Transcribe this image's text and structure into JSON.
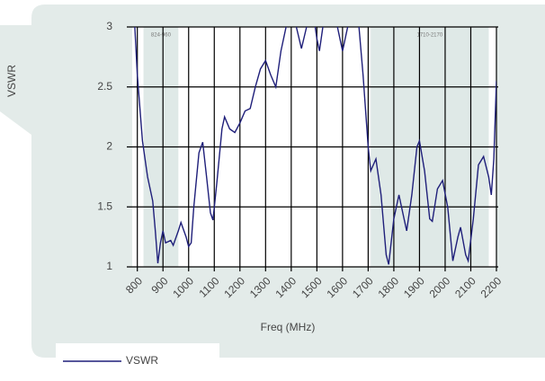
{
  "chart_data": {
    "type": "line",
    "y_label": "VSWR",
    "x_label": "Freq (MHz)",
    "xlim": [
      780,
      2200
    ],
    "xticks": [
      800,
      900,
      1000,
      1100,
      1200,
      1300,
      1400,
      1500,
      1600,
      1700,
      1800,
      1900,
      2000,
      2100,
      2200
    ],
    "ylim": [
      1,
      3
    ],
    "yticks": [
      1,
      1.5,
      2,
      2.5,
      3
    ],
    "grid": true,
    "bands": [
      {
        "label": "824-960",
        "range": [
          824,
          960
        ]
      },
      {
        "label": "1710-2170",
        "range": [
          1710,
          2170
        ]
      }
    ],
    "band_color": "#dfe9e7",
    "legend": "bottom-left",
    "x": [
      790,
      800,
      820,
      840,
      860,
      870,
      880,
      890,
      900,
      910,
      930,
      940,
      960,
      970,
      990,
      1000,
      1010,
      1020,
      1040,
      1055,
      1070,
      1085,
      1095,
      1110,
      1130,
      1140,
      1160,
      1180,
      1200,
      1220,
      1240,
      1260,
      1280,
      1300,
      1320,
      1340,
      1360,
      1380,
      1400,
      1420,
      1440,
      1460,
      1480,
      1500,
      1510,
      1530,
      1560,
      1580,
      1600,
      1620,
      1640,
      1660,
      1680,
      1700,
      1710,
      1730,
      1750,
      1770,
      1780,
      1800,
      1820,
      1840,
      1850,
      1870,
      1890,
      1900,
      1920,
      1940,
      1950,
      1970,
      1990,
      2010,
      2030,
      2050,
      2060,
      2080,
      2090,
      2110,
      2130,
      2150,
      2170,
      2180,
      2190,
      2200
    ],
    "series": [
      {
        "name": "VSWR",
        "color": "#1f1f7a",
        "values": [
          3,
          2.6,
          2.05,
          1.75,
          1.55,
          1.3,
          1.03,
          1.2,
          1.3,
          1.2,
          1.22,
          1.18,
          1.3,
          1.37,
          1.25,
          1.17,
          1.2,
          1.5,
          1.95,
          2.04,
          1.75,
          1.45,
          1.39,
          1.7,
          2.15,
          2.25,
          2.15,
          2.12,
          2.2,
          2.3,
          2.32,
          2.5,
          2.65,
          2.72,
          2.6,
          2.5,
          2.8,
          3.0,
          3.2,
          3.0,
          2.82,
          3.0,
          3.2,
          2.9,
          2.8,
          3.1,
          3.2,
          3.0,
          2.8,
          3.0,
          3.2,
          3.1,
          2.6,
          2.0,
          1.8,
          1.9,
          1.6,
          1.1,
          1.02,
          1.4,
          1.6,
          1.4,
          1.3,
          1.6,
          2.0,
          2.05,
          1.8,
          1.4,
          1.38,
          1.65,
          1.72,
          1.5,
          1.05,
          1.25,
          1.33,
          1.1,
          1.05,
          1.4,
          1.85,
          1.92,
          1.75,
          1.6,
          1.9,
          2.55
        ]
      }
    ]
  }
}
